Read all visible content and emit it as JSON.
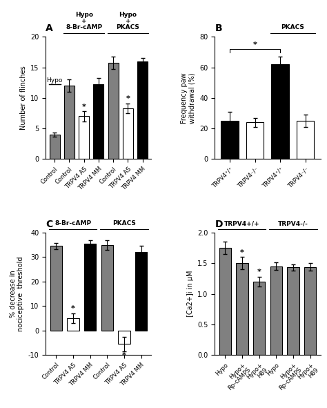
{
  "chart_data": [
    {
      "type": "bar",
      "title": "A",
      "categories": [
        "Control",
        "Control",
        "TRPV4 AS",
        "TRPV4 MM",
        "Control",
        "TRPV4 AS",
        "TRPV4 MM"
      ],
      "values": [
        4.0,
        12.0,
        7.0,
        12.2,
        15.7,
        8.3,
        16.0
      ],
      "errors": [
        0.3,
        1.0,
        0.8,
        1.0,
        1.0,
        0.8,
        0.5
      ],
      "colors": [
        "#808080",
        "#808080",
        "#ffffff",
        "#000000",
        "#808080",
        "#ffffff",
        "#000000"
      ],
      "y_label": "Number of flinches",
      "ylim": [
        0,
        20
      ],
      "yticks": [
        0,
        5,
        10,
        15,
        20
      ],
      "groups": [
        {
          "first": 1,
          "last": 3,
          "label": "Hypo\n+\n8-Br-cAMP"
        },
        {
          "first": 4,
          "last": 6,
          "label": "Hypo\n+\nPKACS"
        }
      ],
      "annotations": [
        {
          "bar": 2,
          "text": "*"
        },
        {
          "bar": 5,
          "text": "*"
        }
      ],
      "reference_lines": [
        {
          "bar": 0,
          "y": 12.2,
          "label": "Hypo"
        }
      ]
    },
    {
      "type": "bar",
      "title": "B",
      "categories": [
        "TRPV4⁺/⁺",
        "TRPV4⁻/⁻",
        "TRPV4⁺/⁺",
        "TRPV4⁻/⁻"
      ],
      "values": [
        25,
        24,
        62,
        25
      ],
      "errors": [
        6,
        3,
        5,
        4
      ],
      "colors": [
        "#000000",
        "#ffffff",
        "#000000",
        "#ffffff"
      ],
      "y_label": "Frequency paw\nwithdrawal (%)",
      "ylim": [
        0,
        80
      ],
      "yticks": [
        0,
        20,
        40,
        60,
        80
      ],
      "groups": [
        {
          "first": 2,
          "last": 3,
          "label": "PKACS"
        }
      ],
      "brackets": [
        {
          "first": 0,
          "last": 2,
          "label": "*"
        }
      ]
    },
    {
      "type": "bar",
      "title": "C",
      "categories": [
        "Control",
        "TRPV4 AS",
        "TRPV4 MM",
        "Control",
        "TRPV4 AS",
        "TRPV4 MM"
      ],
      "values": [
        34.5,
        5.0,
        35.5,
        35.0,
        -5.5,
        32.0
      ],
      "errors": [
        1.2,
        2.0,
        1.5,
        2.0,
        3.0,
        2.5
      ],
      "colors": [
        "#808080",
        "#ffffff",
        "#000000",
        "#808080",
        "#ffffff",
        "#000000"
      ],
      "y_label": "% decrease in\nnociceptive  threshold",
      "ylim": [
        -10,
        40
      ],
      "yticks": [
        -10,
        0,
        10,
        20,
        30,
        40
      ],
      "groups": [
        {
          "first": 0,
          "last": 2,
          "label": "8-Br-cAMP"
        },
        {
          "first": 3,
          "last": 5,
          "label": "PKACS"
        }
      ],
      "annotations": [
        {
          "bar": 1,
          "text": "*"
        },
        {
          "bar": 4,
          "text": "*"
        }
      ]
    },
    {
      "type": "bar",
      "title": "D",
      "categories": [
        "Hypo",
        "Hypo+\nRp-cAMPS",
        "Hypo+\nH89",
        "Hypo",
        "Hypo+\nRp-cAMPS",
        "Hypo+\nH89"
      ],
      "values": [
        1.75,
        1.5,
        1.2,
        1.45,
        1.43,
        1.44
      ],
      "errors": [
        0.1,
        0.1,
        0.08,
        0.06,
        0.05,
        0.06
      ],
      "colors": [
        "#808080",
        "#808080",
        "#808080",
        "#808080",
        "#808080",
        "#808080"
      ],
      "y_label": "[Ca2+]i in μM",
      "ylim": [
        0,
        2
      ],
      "yticks": [
        {
          "value": 0,
          "label": "0.0"
        },
        {
          "value": 0.5,
          "label": "0.5"
        },
        {
          "value": 1,
          "label": "1.0"
        },
        {
          "value": 1.5,
          "label": "1.5"
        },
        {
          "value": 2,
          "label": "2.0"
        }
      ],
      "groups": [
        {
          "first": 0,
          "last": 2,
          "label": "TRPV4+/+"
        },
        {
          "first": 3,
          "last": 5,
          "label": "TRPV4-/-"
        }
      ],
      "annotations": [
        {
          "bar": 1,
          "text": "*"
        },
        {
          "bar": 2,
          "text": "*"
        }
      ]
    }
  ]
}
